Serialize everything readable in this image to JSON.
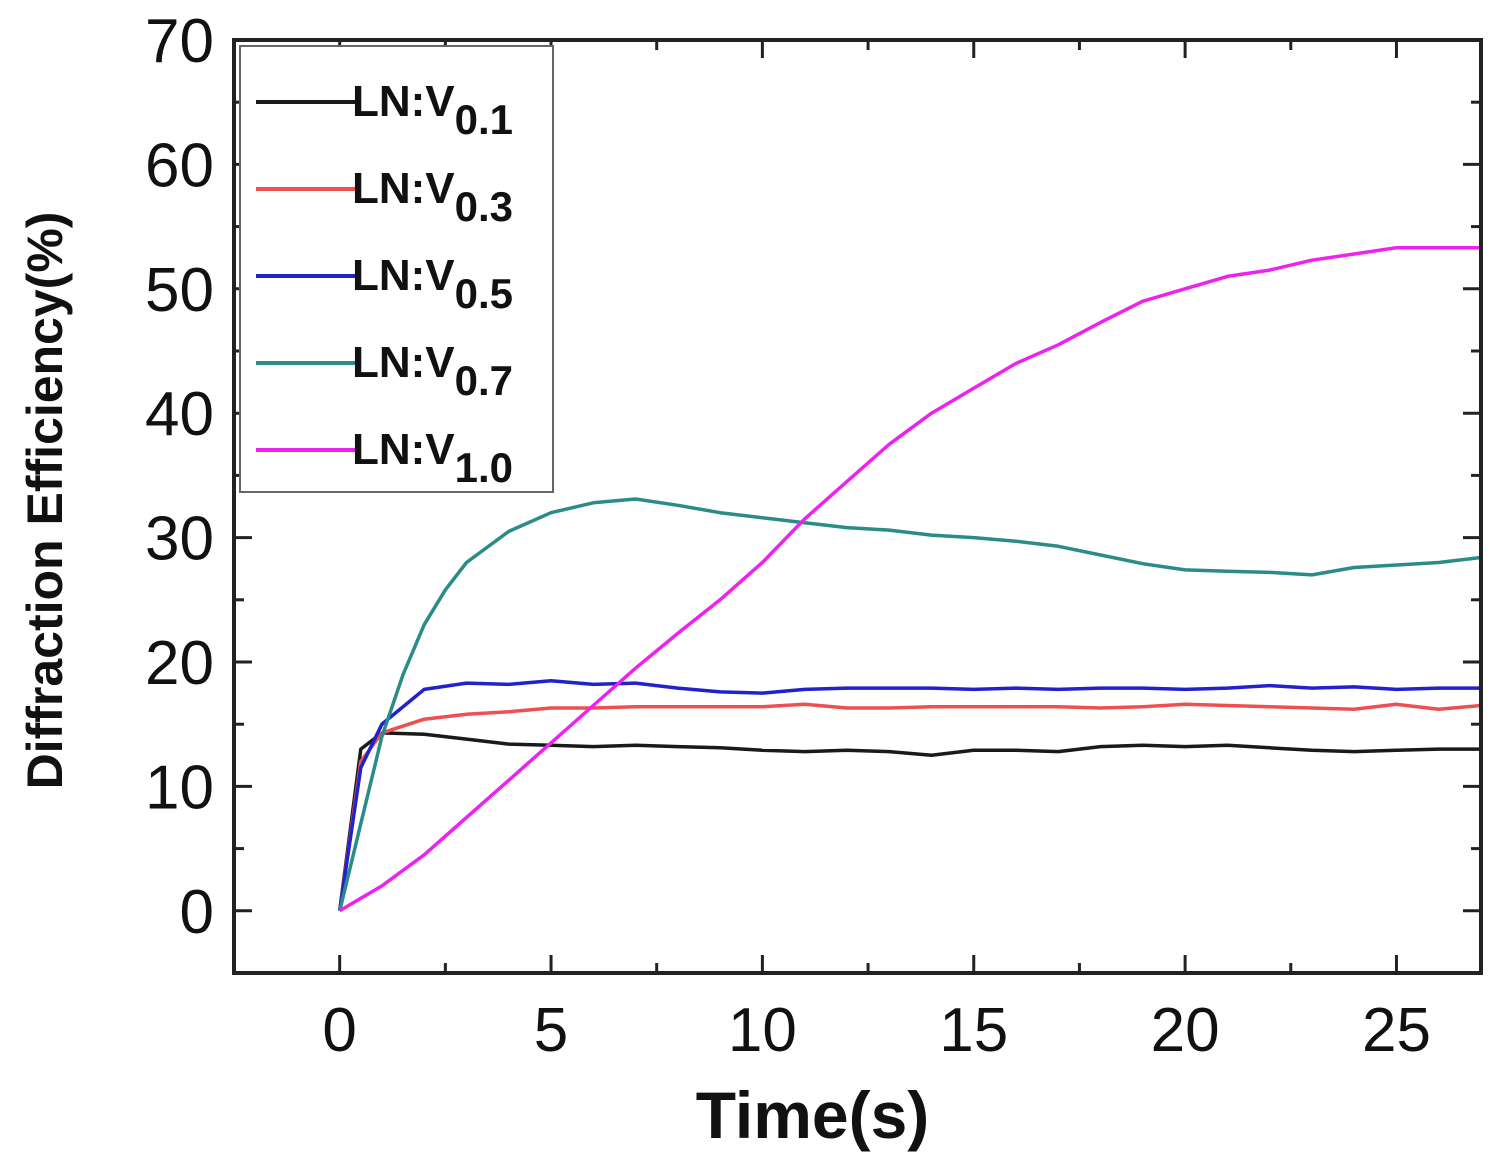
{
  "chart_data": {
    "type": "line",
    "title": "",
    "xlabel": "Time(s)",
    "ylabel": "Diffraction Efficiency(%)",
    "xlim": [
      -2.5,
      27
    ],
    "ylim": [
      -5,
      70
    ],
    "xticks": [
      0,
      5,
      10,
      15,
      20,
      25
    ],
    "yticks": [
      0,
      10,
      20,
      30,
      40,
      50,
      60,
      70
    ],
    "grid": false,
    "legend_position": "top-left",
    "series": [
      {
        "name": "LN:V0.1",
        "label_main": "LN:V",
        "label_sub": "0.1",
        "color": "#1a1a1a",
        "x": [
          0,
          0.5,
          1,
          2,
          3,
          4,
          5,
          6,
          7,
          8,
          9,
          10,
          11,
          12,
          13,
          14,
          15,
          16,
          17,
          18,
          19,
          20,
          21,
          22,
          23,
          24,
          25,
          26,
          27
        ],
        "y": [
          0,
          13.0,
          14.3,
          14.2,
          13.8,
          13.4,
          13.3,
          13.2,
          13.3,
          13.2,
          13.1,
          12.9,
          12.8,
          12.9,
          12.8,
          12.5,
          12.9,
          12.9,
          12.8,
          13.2,
          13.3,
          13.2,
          13.3,
          13.1,
          12.9,
          12.8,
          12.9,
          13.0,
          13.0
        ]
      },
      {
        "name": "LN:V0.3",
        "label_main": "LN:V",
        "label_sub": "0.3",
        "color": "#ee5050",
        "x": [
          0,
          0.5,
          1,
          2,
          3,
          4,
          5,
          6,
          7,
          8,
          9,
          10,
          11,
          12,
          13,
          14,
          15,
          16,
          17,
          18,
          19,
          20,
          21,
          22,
          23,
          24,
          25,
          26,
          27
        ],
        "y": [
          0,
          12.0,
          14.3,
          15.4,
          15.8,
          16.0,
          16.3,
          16.3,
          16.4,
          16.4,
          16.4,
          16.4,
          16.6,
          16.3,
          16.3,
          16.4,
          16.4,
          16.4,
          16.4,
          16.3,
          16.4,
          16.6,
          16.5,
          16.4,
          16.3,
          16.2,
          16.6,
          16.2,
          16.5
        ]
      },
      {
        "name": "LN:V0.5",
        "label_main": "LN:V",
        "label_sub": "0.5",
        "color": "#2222cc",
        "x": [
          0,
          0.5,
          1,
          2,
          3,
          4,
          5,
          6,
          7,
          8,
          9,
          10,
          11,
          12,
          13,
          14,
          15,
          16,
          17,
          18,
          19,
          20,
          21,
          22,
          23,
          24,
          25,
          26,
          27
        ],
        "y": [
          0,
          11.5,
          15.0,
          17.8,
          18.3,
          18.2,
          18.5,
          18.2,
          18.3,
          17.9,
          17.6,
          17.5,
          17.8,
          17.9,
          17.9,
          17.9,
          17.8,
          17.9,
          17.8,
          17.9,
          17.9,
          17.8,
          17.9,
          18.1,
          17.9,
          18.0,
          17.8,
          17.9,
          17.9
        ]
      },
      {
        "name": "LN:V0.7",
        "label_main": "LN:V",
        "label_sub": "0.7",
        "color": "#2a8c88",
        "x": [
          0,
          0.5,
          1,
          1.5,
          2,
          2.5,
          3,
          4,
          5,
          6,
          7,
          8,
          9,
          10,
          11,
          12,
          13,
          14,
          15,
          16,
          17,
          18,
          19,
          20,
          21,
          22,
          23,
          24,
          25,
          26,
          27
        ],
        "y": [
          0,
          7.0,
          14.0,
          19.0,
          23.0,
          25.8,
          28.0,
          30.5,
          32.0,
          32.8,
          33.1,
          32.6,
          32.0,
          31.6,
          31.2,
          30.8,
          30.6,
          30.2,
          30.0,
          29.7,
          29.3,
          28.6,
          27.9,
          27.4,
          27.3,
          27.2,
          27.0,
          27.6,
          27.8,
          28.0,
          28.4
        ]
      },
      {
        "name": "LN:V1.0",
        "label_main": "LN:V",
        "label_sub": "1.0",
        "color": "#ee22ee",
        "x": [
          0,
          1,
          2,
          3,
          4,
          5,
          6,
          7,
          8,
          9,
          10,
          11,
          12,
          13,
          14,
          15,
          16,
          17,
          18,
          19,
          20,
          21,
          22,
          23,
          24,
          25,
          26,
          27
        ],
        "y": [
          0,
          2.0,
          4.5,
          7.5,
          10.5,
          13.5,
          16.5,
          19.5,
          22.3,
          25.0,
          28.0,
          31.5,
          34.5,
          37.5,
          40.0,
          42.0,
          44.0,
          45.5,
          47.3,
          49.0,
          50.0,
          51.0,
          51.5,
          52.3,
          52.8,
          53.3,
          53.3,
          53.3
        ]
      }
    ]
  }
}
